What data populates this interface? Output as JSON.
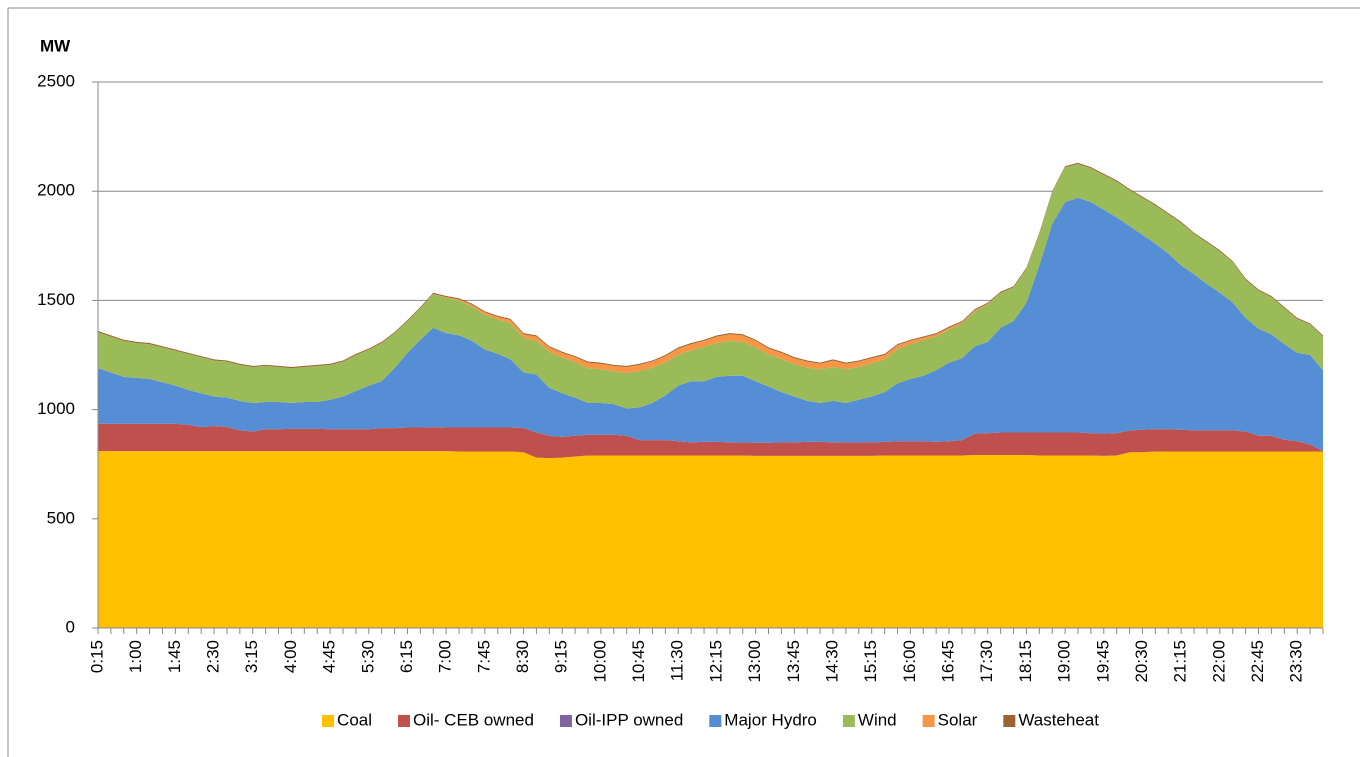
{
  "chart_data": {
    "type": "stacked_area",
    "y_label": "MW",
    "categories": [
      "0:15",
      null,
      null,
      "1:00",
      null,
      null,
      "1:45",
      null,
      null,
      "2:30",
      null,
      null,
      "3:15",
      null,
      null,
      "4:00",
      null,
      null,
      "4:45",
      null,
      null,
      "5:30",
      null,
      null,
      "6:15",
      null,
      null,
      "7:00",
      null,
      null,
      "7:45",
      null,
      null,
      "8:30",
      null,
      null,
      "9:15",
      null,
      null,
      "10:00",
      null,
      null,
      "10:45",
      null,
      null,
      "11:30",
      null,
      null,
      "12:15",
      null,
      null,
      "13:00",
      null,
      null,
      "13:45",
      null,
      null,
      "14:30",
      null,
      null,
      "15:15",
      null,
      null,
      "16:00",
      null,
      null,
      "16:45",
      null,
      null,
      "17:30",
      null,
      null,
      "18:15",
      null,
      null,
      "19:00",
      null,
      null,
      "19:45",
      null,
      null,
      "20:30",
      null,
      null,
      "21:15",
      null,
      null,
      "22:00",
      null,
      null,
      "22:45",
      null,
      null,
      "23:30",
      null,
      null
    ],
    "series": [
      {
        "name": "Coal",
        "color": "#ffc000",
        "values": [
          810,
          810,
          810,
          810,
          810,
          810,
          810,
          810,
          810,
          810,
          810,
          810,
          810,
          810,
          810,
          810,
          810,
          810,
          810,
          810,
          810,
          810,
          810,
          810,
          810,
          810,
          810,
          810,
          808,
          808,
          808,
          808,
          808,
          805,
          780,
          778,
          780,
          785,
          790,
          790,
          790,
          790,
          790,
          790,
          790,
          790,
          790,
          790,
          790,
          790,
          790,
          788,
          788,
          788,
          788,
          788,
          788,
          788,
          788,
          788,
          788,
          790,
          790,
          790,
          790,
          790,
          790,
          790,
          792,
          792,
          792,
          792,
          792,
          790,
          790,
          790,
          790,
          790,
          788,
          790,
          805,
          805,
          808,
          808,
          808,
          808,
          808,
          808,
          808,
          808,
          808,
          808,
          808,
          808,
          808,
          808
        ]
      },
      {
        "name": "Oil- CEB owned",
        "color": "#c0504d",
        "values": [
          125,
          125,
          125,
          125,
          125,
          125,
          125,
          120,
          110,
          115,
          110,
          95,
          90,
          100,
          100,
          102,
          102,
          102,
          100,
          100,
          100,
          100,
          105,
          105,
          108,
          108,
          110,
          108,
          110,
          110,
          110,
          110,
          110,
          110,
          115,
          102,
          95,
          95,
          95,
          95,
          95,
          90,
          70,
          70,
          70,
          65,
          60,
          62,
          62,
          60,
          60,
          60,
          60,
          62,
          62,
          64,
          64,
          62,
          62,
          62,
          62,
          62,
          65,
          65,
          65,
          62,
          65,
          70,
          98,
          100,
          103,
          103,
          103,
          105,
          105,
          105,
          105,
          102,
          102,
          102,
          100,
          103,
          102,
          102,
          100,
          97,
          97,
          97,
          97,
          92,
          72,
          72,
          54,
          47,
          32,
          2
        ]
      },
      {
        "name": "Oil-IPP owned",
        "color": "#8064a2",
        "values": [
          0,
          0,
          0,
          0,
          0,
          0,
          0,
          0,
          0,
          0,
          0,
          0,
          0,
          0,
          0,
          0,
          0,
          0,
          0,
          0,
          0,
          0,
          0,
          0,
          0,
          0,
          0,
          0,
          0,
          0,
          0,
          0,
          0,
          0,
          0,
          0,
          0,
          0,
          0,
          0,
          0,
          0,
          0,
          0,
          0,
          0,
          0,
          0,
          0,
          0,
          0,
          0,
          0,
          0,
          0,
          0,
          0,
          0,
          0,
          0,
          0,
          0,
          0,
          0,
          0,
          0,
          0,
          0,
          0,
          0,
          0,
          0,
          0,
          0,
          0,
          0,
          0,
          0,
          0,
          0,
          0,
          0,
          0,
          0,
          0,
          0,
          0,
          0,
          0,
          0,
          0,
          0,
          0,
          0,
          0,
          0
        ]
      },
      {
        "name": "Major Hydro",
        "color": "#558ed5",
        "values": [
          255,
          235,
          215,
          210,
          205,
          190,
          175,
          160,
          155,
          135,
          135,
          135,
          130,
          125,
          125,
          118,
          123,
          123,
          135,
          150,
          175,
          200,
          215,
          275,
          342,
          402,
          455,
          432,
          422,
          397,
          357,
          337,
          312,
          255,
          265,
          220,
          200,
          175,
          145,
          145,
          140,
          125,
          150,
          170,
          205,
          255,
          280,
          278,
          298,
          305,
          305,
          282,
          257,
          230,
          210,
          188,
          178,
          190,
          180,
          195,
          210,
          228,
          265,
          285,
          300,
          328,
          360,
          375,
          400,
          418,
          480,
          510,
          595,
          765,
          955,
          1055,
          1075,
          1058,
          1025,
          988,
          935,
          892,
          850,
          805,
          752,
          715,
          670,
          630,
          585,
          520,
          490,
          465,
          438,
          405,
          410,
          370
        ]
      },
      {
        "name": "Wind",
        "color": "#9bbb59",
        "values": [
          165,
          165,
          165,
          160,
          160,
          160,
          160,
          165,
          165,
          165,
          165,
          165,
          165,
          165,
          160,
          160,
          160,
          165,
          160,
          160,
          165,
          165,
          175,
          160,
          145,
          145,
          153,
          162,
          160,
          157,
          160,
          158,
          165,
          157,
          155,
          165,
          163,
          163,
          160,
          155,
          150,
          162,
          167,
          162,
          152,
          142,
          142,
          157,
          155,
          160,
          155,
          155,
          147,
          152,
          147,
          152,
          155,
          155,
          155,
          150,
          153,
          150,
          157,
          160,
          163,
          155,
          152,
          159,
          161,
          173,
          160,
          155,
          155,
          145,
          145,
          160,
          155,
          155,
          160,
          165,
          165,
          170,
          175,
          180,
          195,
          185,
          190,
          190,
          185,
          175,
          175,
          170,
          165,
          155,
          140,
          155
        ]
      },
      {
        "name": "Solar",
        "color": "#f79646",
        "values": [
          0,
          0,
          0,
          0,
          0,
          0,
          0,
          0,
          0,
          0,
          0,
          0,
          0,
          0,
          0,
          0,
          0,
          0,
          0,
          0,
          0,
          0,
          0,
          0,
          0,
          0,
          2,
          3,
          5,
          8,
          10,
          12,
          15,
          18,
          20,
          20,
          22,
          22,
          25,
          25,
          25,
          28,
          28,
          28,
          28,
          28,
          28,
          28,
          30,
          30,
          30,
          30,
          28,
          28,
          28,
          28,
          25,
          30,
          25,
          25,
          22,
          20,
          18,
          15,
          12,
          10,
          8,
          6,
          4,
          2,
          0,
          0,
          0,
          0,
          0,
          0,
          0,
          0,
          0,
          0,
          0,
          0,
          0,
          0,
          0,
          0,
          0,
          0,
          0,
          0,
          0,
          0,
          0,
          0,
          0,
          0
        ]
      },
      {
        "name": "Wasteheat",
        "color": "#9c6433",
        "values": [
          5,
          5,
          5,
          5,
          5,
          5,
          5,
          5,
          5,
          5,
          5,
          5,
          5,
          5,
          5,
          5,
          5,
          5,
          5,
          5,
          5,
          5,
          5,
          5,
          5,
          5,
          5,
          5,
          5,
          5,
          5,
          5,
          5,
          5,
          5,
          5,
          5,
          5,
          5,
          5,
          5,
          5,
          5,
          5,
          5,
          5,
          5,
          5,
          5,
          5,
          5,
          5,
          5,
          5,
          5,
          5,
          5,
          5,
          5,
          5,
          5,
          5,
          5,
          5,
          5,
          5,
          5,
          5,
          5,
          5,
          5,
          5,
          5,
          5,
          5,
          5,
          5,
          5,
          5,
          5,
          5,
          5,
          5,
          5,
          5,
          5,
          5,
          5,
          5,
          5,
          5,
          5,
          5,
          5,
          5,
          5
        ]
      }
    ],
    "ylim": [
      0,
      2500
    ],
    "yticks": [
      0,
      500,
      1000,
      1500,
      2000,
      2500
    ],
    "grid": true,
    "legend": "bottom"
  }
}
